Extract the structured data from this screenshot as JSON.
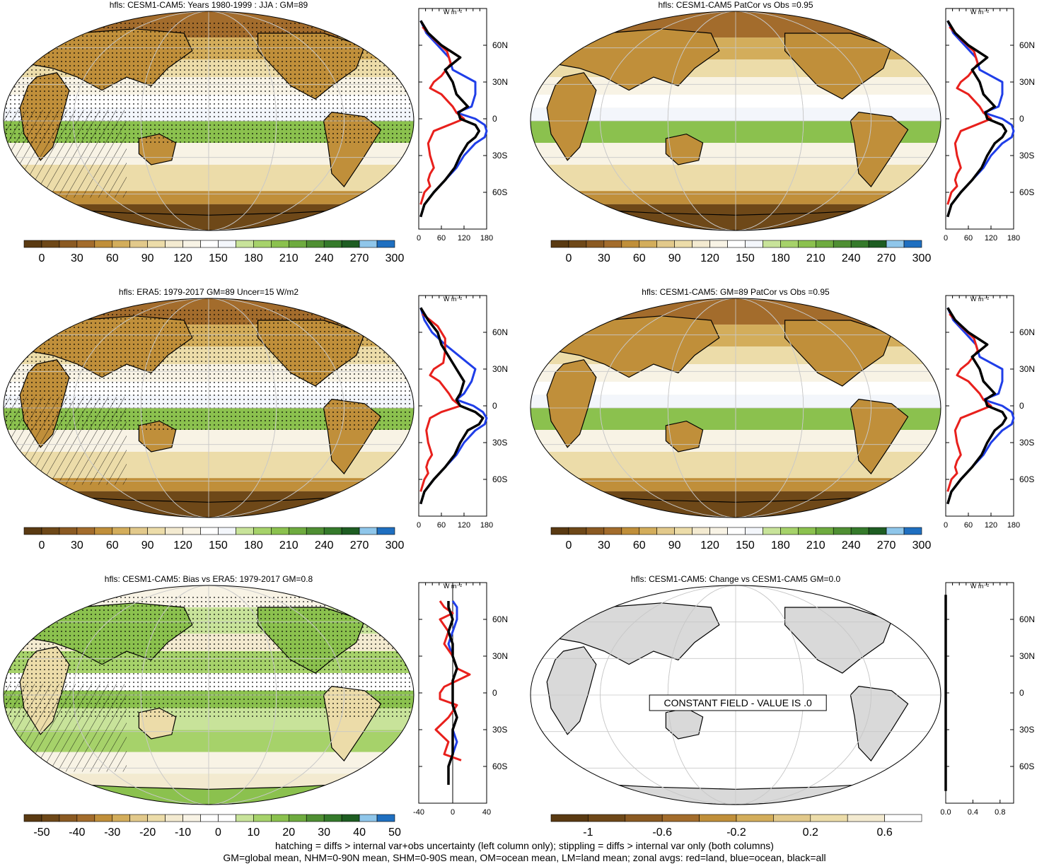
{
  "footer": {
    "line1": "hatching = diffs > internal var+obs uncertainty (left column only); stippling = diffs > internal var only (both columns)",
    "line2": "GM=global mean, NHM=0-90N mean, SHM=0-90S mean, OM=ocean mean, LM=land mean; zonal avgs: red=land, blue=ocean, black=all"
  },
  "zonal_unit": "W m⁻²",
  "lat_ticks": [
    "60N",
    "30N",
    "0",
    "30S",
    "60S"
  ],
  "colors": {
    "land": "#e8201c",
    "ocean": "#1f3ee8",
    "all": "#000000"
  },
  "palettes": {
    "abs": [
      "#5a3a12",
      "#6e4818",
      "#8b5a22",
      "#a36c2c",
      "#c08f3a",
      "#d3ad5b",
      "#e2c98b",
      "#ecdca9",
      "#f3ead0",
      "#f8f3e5",
      "#ffffff",
      "#f3f6fb",
      "#c8e39a",
      "#a6d26a",
      "#8bc14e",
      "#6eab3f",
      "#4f8f33",
      "#357a2b",
      "#1e5d22",
      "#8fc6ea",
      "#1f6fc0"
    ],
    "bias": [
      "#5a3a12",
      "#6e4818",
      "#8b5a22",
      "#a36c2c",
      "#c08f3a",
      "#d3ad5b",
      "#e2c98b",
      "#ecdca9",
      "#f3ead0",
      "#f8f3e5",
      "#ffffff",
      "#ffffff",
      "#c8e39a",
      "#a6d26a",
      "#8bc14e",
      "#6eab3f",
      "#4f8f33",
      "#357a2b",
      "#1e5d22",
      "#8fc6ea",
      "#1f6fc0"
    ],
    "change": [
      "#5a3a12",
      "#6e4818",
      "#8b5a22",
      "#a36c2c",
      "#c08f3a",
      "#d3ad5b",
      "#e2c98b",
      "#ecdca9",
      "#f3ead0",
      "#ffffff"
    ]
  },
  "chart_data": [
    {
      "type": "heatmap",
      "title": "hfls: CESM1-CAM5: Years 1980-1999 : JJA : GM=89",
      "colorbar_labels": [
        "0",
        "30",
        "60",
        "90",
        "120",
        "150",
        "180",
        "210",
        "240",
        "270",
        "300"
      ],
      "palette": "abs",
      "hatched": true,
      "stippled": true,
      "zonal": {
        "type": "line",
        "xlim": [
          0,
          180
        ],
        "x_ticks": [
          "0",
          "60",
          "120",
          "180"
        ],
        "zero_line": false,
        "series": [
          {
            "role": "all",
            "lat": [
              80,
              70,
              60,
              50,
              40,
              30,
              20,
              10,
              5,
              0,
              -5,
              -10,
              -15,
              -20,
              -30,
              -40,
              -50,
              -60,
              -70,
              -80
            ],
            "values": [
              5,
              25,
              60,
              110,
              70,
              90,
              100,
              130,
              105,
              110,
              150,
              160,
              150,
              130,
              110,
              95,
              70,
              40,
              15,
              5
            ]
          },
          {
            "role": "ocean",
            "lat": [
              80,
              70,
              60,
              50,
              40,
              30,
              20,
              10,
              5,
              0,
              -5,
              -10,
              -15,
              -20,
              -30,
              -40,
              -50,
              -60,
              -70,
              -80
            ],
            "values": [
              5,
              20,
              50,
              80,
              90,
              150,
              150,
              140,
              100,
              150,
              175,
              180,
              175,
              150,
              120,
              100,
              70,
              40,
              15,
              5
            ]
          },
          {
            "role": "land",
            "lat": [
              75,
              65,
              55,
              45,
              35,
              30,
              25,
              20,
              10,
              5,
              0,
              -5,
              -10,
              -20,
              -30,
              -40,
              -45,
              -50,
              -55,
              -60,
              -70
            ],
            "values": [
              10,
              40,
              75,
              85,
              60,
              40,
              30,
              60,
              90,
              100,
              120,
              80,
              40,
              25,
              30,
              40,
              30,
              25,
              30,
              15,
              5
            ]
          }
        ]
      }
    },
    {
      "type": "heatmap",
      "title": "hfls: CESM1-CAM5 PatCor vs Obs =0.95",
      "colorbar_labels": [
        "0",
        "30",
        "60",
        "90",
        "120",
        "150",
        "180",
        "210",
        "240",
        "270",
        "300"
      ],
      "palette": "abs",
      "hatched": false,
      "stippled": false,
      "zonal": {
        "type": "line",
        "xlim": [
          0,
          180
        ],
        "x_ticks": [
          "0",
          "60",
          "120",
          "180"
        ],
        "zero_line": false,
        "series": [
          {
            "role": "all",
            "lat": [
              80,
              70,
              60,
              50,
              40,
              30,
              20,
              10,
              5,
              0,
              -5,
              -10,
              -15,
              -20,
              -30,
              -40,
              -50,
              -60,
              -70,
              -80
            ],
            "values": [
              5,
              25,
              60,
              110,
              70,
              90,
              100,
              130,
              105,
              110,
              150,
              160,
              150,
              130,
              110,
              95,
              70,
              40,
              15,
              5
            ]
          },
          {
            "role": "ocean",
            "lat": [
              80,
              70,
              60,
              50,
              40,
              30,
              20,
              10,
              5,
              0,
              -5,
              -10,
              -15,
              -20,
              -30,
              -40,
              -50,
              -60,
              -70,
              -80
            ],
            "values": [
              5,
              20,
              50,
              80,
              90,
              150,
              150,
              140,
              100,
              150,
              175,
              180,
              175,
              150,
              120,
              100,
              70,
              40,
              15,
              5
            ]
          },
          {
            "role": "land",
            "lat": [
              75,
              65,
              55,
              45,
              35,
              30,
              25,
              20,
              10,
              5,
              0,
              -5,
              -10,
              -20,
              -30,
              -40,
              -45,
              -50,
              -55,
              -60,
              -70
            ],
            "values": [
              10,
              40,
              75,
              85,
              60,
              40,
              30,
              60,
              90,
              100,
              120,
              80,
              40,
              25,
              30,
              40,
              30,
              25,
              30,
              15,
              5
            ]
          }
        ]
      }
    },
    {
      "type": "heatmap",
      "title": "hfls: ERA5: 1979-2017 GM=89 Uncer=15 W/m2",
      "colorbar_labels": [
        "0",
        "30",
        "60",
        "90",
        "120",
        "150",
        "180",
        "210",
        "240",
        "270",
        "300"
      ],
      "palette": "abs",
      "hatched": true,
      "stippled": true,
      "zonal": {
        "type": "line",
        "xlim": [
          0,
          180
        ],
        "x_ticks": [
          "0",
          "60",
          "120",
          "180"
        ],
        "zero_line": false,
        "series": [
          {
            "role": "all",
            "lat": [
              80,
              70,
              60,
              50,
              40,
              30,
              20,
              10,
              5,
              0,
              -5,
              -10,
              -15,
              -20,
              -30,
              -40,
              -50,
              -60,
              -70,
              -80
            ],
            "values": [
              5,
              25,
              50,
              60,
              80,
              100,
              120,
              110,
              100,
              110,
              150,
              170,
              160,
              130,
              110,
              95,
              70,
              40,
              15,
              5
            ]
          },
          {
            "role": "ocean",
            "lat": [
              80,
              70,
              60,
              50,
              40,
              30,
              20,
              10,
              5,
              0,
              -5,
              -10,
              -15,
              -20,
              -30,
              -40,
              -50,
              -60,
              -70,
              -80
            ],
            "values": [
              5,
              15,
              35,
              70,
              110,
              150,
              140,
              120,
              100,
              145,
              170,
              180,
              175,
              150,
              120,
              100,
              70,
              40,
              15,
              5
            ]
          },
          {
            "role": "land",
            "lat": [
              75,
              65,
              55,
              45,
              35,
              30,
              25,
              20,
              10,
              5,
              0,
              -5,
              -10,
              -20,
              -30,
              -40,
              -45,
              -50,
              -55,
              -60,
              -70
            ],
            "values": [
              10,
              50,
              70,
              70,
              65,
              40,
              30,
              55,
              80,
              90,
              110,
              60,
              30,
              20,
              25,
              35,
              25,
              20,
              25,
              15,
              5
            ]
          }
        ]
      }
    },
    {
      "type": "heatmap",
      "title": "hfls: CESM1-CAM5: GM=89 PatCor vs Obs =0.95",
      "colorbar_labels": [
        "0",
        "30",
        "60",
        "90",
        "120",
        "150",
        "180",
        "210",
        "240",
        "270",
        "300"
      ],
      "palette": "abs",
      "hatched": false,
      "stippled": false,
      "zonal": {
        "type": "line",
        "xlim": [
          0,
          180
        ],
        "x_ticks": [
          "0",
          "60",
          "120",
          "180"
        ],
        "zero_line": false,
        "series": [
          {
            "role": "all",
            "lat": [
              80,
              70,
              60,
              50,
              40,
              30,
              20,
              10,
              5,
              0,
              -5,
              -10,
              -15,
              -20,
              -30,
              -40,
              -50,
              -60,
              -70,
              -80
            ],
            "values": [
              5,
              25,
              60,
              110,
              70,
              90,
              100,
              130,
              105,
              110,
              150,
              160,
              150,
              130,
              110,
              95,
              70,
              40,
              15,
              5
            ]
          },
          {
            "role": "ocean",
            "lat": [
              80,
              70,
              60,
              50,
              40,
              30,
              20,
              10,
              5,
              0,
              -5,
              -10,
              -15,
              -20,
              -30,
              -40,
              -50,
              -60,
              -70,
              -80
            ],
            "values": [
              5,
              20,
              50,
              80,
              90,
              150,
              150,
              140,
              100,
              150,
              175,
              180,
              175,
              150,
              120,
              100,
              70,
              40,
              15,
              5
            ]
          },
          {
            "role": "land",
            "lat": [
              75,
              65,
              55,
              45,
              35,
              30,
              25,
              20,
              10,
              5,
              0,
              -5,
              -10,
              -20,
              -30,
              -40,
              -45,
              -50,
              -55,
              -60,
              -70
            ],
            "values": [
              10,
              40,
              75,
              85,
              60,
              40,
              30,
              60,
              90,
              100,
              120,
              80,
              40,
              25,
              30,
              40,
              30,
              25,
              30,
              15,
              5
            ]
          }
        ]
      }
    },
    {
      "type": "heatmap",
      "title": "hfls: CESM1-CAM5: Bias vs ERA5: 1979-2017 GM=0.8",
      "colorbar_labels": [
        "-50",
        "-40",
        "-30",
        "-20",
        "-10",
        "0",
        "10",
        "20",
        "30",
        "40",
        "50"
      ],
      "palette": "bias",
      "hatched": true,
      "stippled": true,
      "zonal": {
        "type": "line",
        "xlim": [
          -40,
          40
        ],
        "x_ticks": [
          "-40",
          "0",
          "40"
        ],
        "zero_line": true,
        "series": [
          {
            "role": "all",
            "lat": [
              75,
              70,
              60,
              50,
              40,
              30,
              20,
              10,
              0,
              -10,
              -20,
              -30,
              -40,
              -50,
              -60,
              -70,
              -75
            ],
            "values": [
              -5,
              -5,
              0,
              -5,
              0,
              0,
              5,
              0,
              0,
              0,
              5,
              0,
              0,
              0,
              -5,
              -5,
              -5
            ]
          },
          {
            "role": "ocean",
            "lat": [
              75,
              70,
              60,
              50,
              40,
              30,
              20,
              10,
              0,
              -10,
              -20,
              -30,
              -40,
              -50,
              -60,
              -70,
              -75
            ],
            "values": [
              0,
              5,
              5,
              0,
              -5,
              0,
              5,
              0,
              0,
              0,
              5,
              0,
              5,
              0,
              -5,
              -5,
              -5
            ]
          },
          {
            "role": "land",
            "lat": [
              75,
              70,
              65,
              60,
              50,
              40,
              30,
              20,
              15,
              10,
              5,
              0,
              -5,
              -10,
              -20,
              -30,
              -40,
              -50,
              -55
            ],
            "values": [
              -15,
              -10,
              0,
              -15,
              -5,
              -10,
              0,
              5,
              20,
              5,
              -10,
              -15,
              -15,
              5,
              -5,
              -20,
              -5,
              -10,
              10
            ]
          }
        ]
      }
    },
    {
      "type": "heatmap",
      "title": "hfls: CESM1-CAM5: Change vs CESM1-CAM5 GM=0.0",
      "colorbar_labels": [
        "-1",
        "-0.6",
        "-0.2",
        "0.2",
        "0.6"
      ],
      "palette": "change",
      "hatched": false,
      "stippled": false,
      "constant_field_message": "CONSTANT FIELD - VALUE IS .0",
      "zonal": {
        "type": "line",
        "xlim": [
          0,
          1
        ],
        "x_ticks": [
          "0.0",
          "0.4",
          "0.8"
        ],
        "zero_line": false,
        "series": [
          {
            "role": "all",
            "lat": [
              80,
              -80
            ],
            "values": [
              0,
              0
            ]
          }
        ]
      }
    }
  ]
}
